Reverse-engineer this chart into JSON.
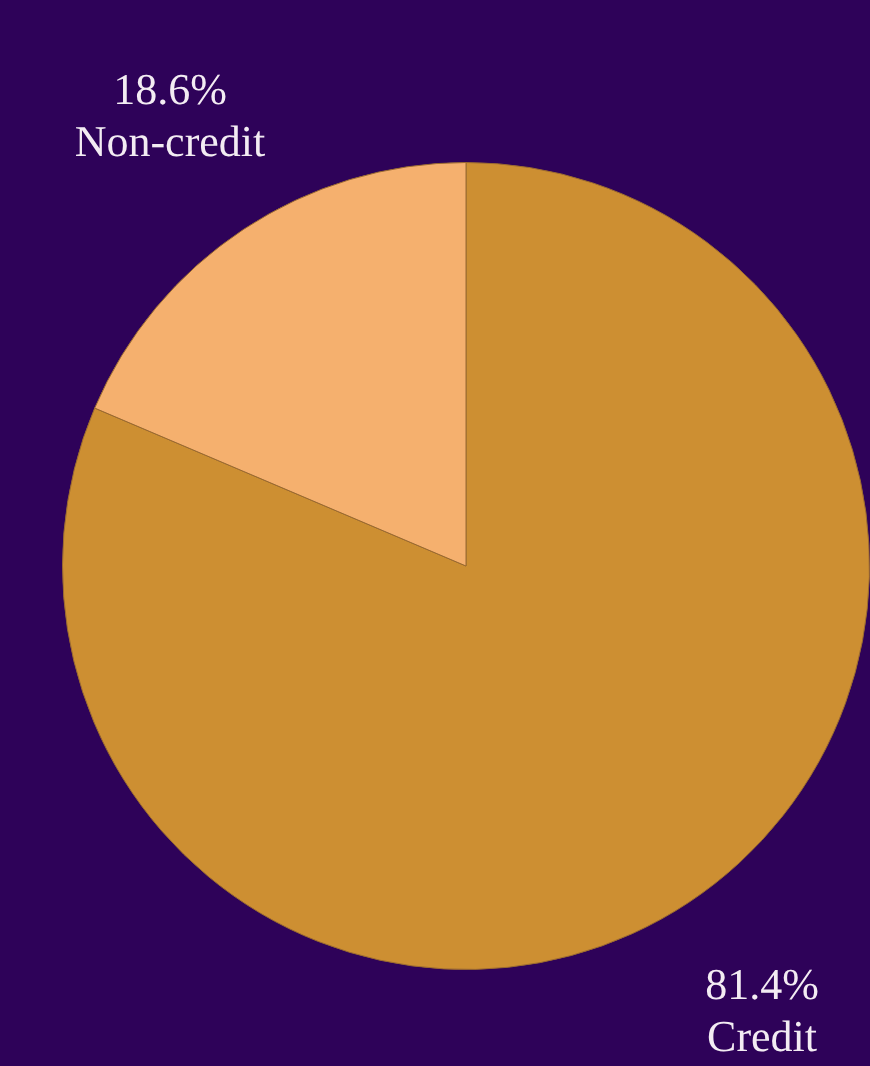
{
  "chart_data": {
    "type": "pie",
    "categories": [
      "Credit",
      "Non-credit"
    ],
    "values": [
      81.4,
      18.6
    ],
    "colors": [
      "#cd8f32",
      "#f5b06e"
    ],
    "value_labels": [
      "81.4%",
      "18.6%"
    ],
    "legend": false
  }
}
